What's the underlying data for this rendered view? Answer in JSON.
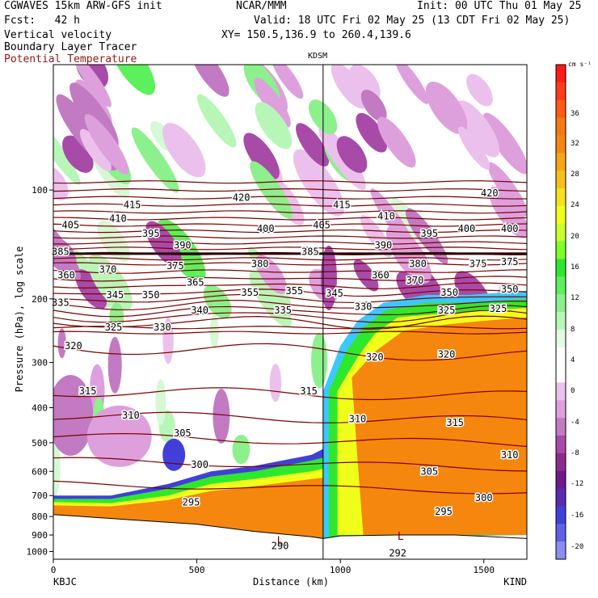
{
  "header": {
    "model": "CGWAVES 15km ARW-GFS init",
    "org": "NCAR/MMM",
    "init": "Init: 00 UTC Thu 01 May 25",
    "fcst": "Fcst:   42 h",
    "valid": "Valid: 18 UTC Fri 02 May 25 (13 CDT Fri 02 May 25)",
    "xy": "XY= 150.5,136.9 to 260.4,139.6",
    "field1": "Vertical velocity",
    "field2": "Boundary Layer Tracer",
    "field3": "Potential Temperature"
  },
  "colors": {
    "theta_line": "#7a0000",
    "title_red": "#8b1a1a",
    "ground": "#f5870e"
  },
  "chart_data": {
    "type": "heatmap",
    "title": "",
    "xlabel": "Distance (km)",
    "ylabel": "Pressure (hPa), log scale",
    "station_marker": "KDSM",
    "station_marker_x_km": 940,
    "left_endpoint": "KBJC",
    "right_endpoint": "KIND",
    "xlim": [
      0,
      1650
    ],
    "x_ticks": [
      0,
      500,
      1000,
      1500
    ],
    "y_ticks": [
      100,
      200,
      300,
      400,
      500,
      600,
      700,
      800,
      900,
      1000
    ],
    "y_scale": "log",
    "colorbar": {
      "unit": "cm s⁻¹",
      "ticks": [
        36,
        32,
        28,
        24,
        20,
        16,
        12,
        8,
        4,
        0,
        -4,
        -8,
        -12,
        -16,
        -20
      ],
      "colors": [
        "#ff1a1a",
        "#ff3a1a",
        "#ff5a14",
        "#f47a10",
        "#f5870e",
        "#f5a515",
        "#f5c01a",
        "#f5e11a",
        "#f0ff1a",
        "#c8ff2a",
        "#7dff2a",
        "#2ee82e",
        "#5cf05c",
        "#8cf08c",
        "#b8f6b8",
        "#e2fbe2",
        "#ffffff",
        "#ffffff",
        "#ecc0ec",
        "#dda0dd",
        "#c27ac2",
        "#a84aa8",
        "#8e2a8e",
        "#6e1a8c",
        "#5a2ab0",
        "#4040d8",
        "#6060ea",
        "#8c8cf2"
      ]
    },
    "theta_labels": [
      {
        "v": "415",
        "x": 275,
        "p": 110
      },
      {
        "v": "405",
        "x": 60,
        "p": 125
      },
      {
        "v": "410",
        "x": 225,
        "p": 120
      },
      {
        "v": "420",
        "x": 655,
        "p": 105
      },
      {
        "v": "395",
        "x": 340,
        "p": 132
      },
      {
        "v": "390",
        "x": 450,
        "p": 142
      },
      {
        "v": "400",
        "x": 740,
        "p": 128
      },
      {
        "v": "405",
        "x": 935,
        "p": 125
      },
      {
        "v": "385",
        "x": 25,
        "p": 148
      },
      {
        "v": "375",
        "x": 425,
        "p": 162
      },
      {
        "v": "370",
        "x": 190,
        "p": 166
      },
      {
        "v": "360",
        "x": 45,
        "p": 172
      },
      {
        "v": "365",
        "x": 495,
        "p": 180
      },
      {
        "v": "380",
        "x": 720,
        "p": 160
      },
      {
        "v": "385",
        "x": 895,
        "p": 148
      },
      {
        "v": "355",
        "x": 685,
        "p": 192
      },
      {
        "v": "355",
        "x": 840,
        "p": 190
      },
      {
        "v": "345",
        "x": 215,
        "p": 195
      },
      {
        "v": "350",
        "x": 340,
        "p": 195
      },
      {
        "v": "345",
        "x": 980,
        "p": 193
      },
      {
        "v": "335",
        "x": 25,
        "p": 205
      },
      {
        "v": "340",
        "x": 510,
        "p": 215
      },
      {
        "v": "335",
        "x": 800,
        "p": 215
      },
      {
        "v": "325",
        "x": 210,
        "p": 240
      },
      {
        "v": "330",
        "x": 380,
        "p": 240
      },
      {
        "v": "320",
        "x": 70,
        "p": 270
      },
      {
        "v": "315",
        "x": 120,
        "p": 360
      },
      {
        "v": "310",
        "x": 270,
        "p": 420
      },
      {
        "v": "305",
        "x": 450,
        "p": 470
      },
      {
        "v": "300",
        "x": 510,
        "p": 575
      },
      {
        "v": "295",
        "x": 480,
        "p": 730
      },
      {
        "v": "315",
        "x": 890,
        "p": 360
      },
      {
        "v": "290",
        "x": 790,
        "p": 965
      },
      {
        "v": "415",
        "x": 1005,
        "p": 110
      },
      {
        "v": "410",
        "x": 1160,
        "p": 118
      },
      {
        "v": "420",
        "x": 1520,
        "p": 102
      },
      {
        "v": "390",
        "x": 1150,
        "p": 142
      },
      {
        "v": "395",
        "x": 1310,
        "p": 132
      },
      {
        "v": "400",
        "x": 1440,
        "p": 128
      },
      {
        "v": "400",
        "x": 1590,
        "p": 128
      },
      {
        "v": "380",
        "x": 1270,
        "p": 160
      },
      {
        "v": "375",
        "x": 1480,
        "p": 160
      },
      {
        "v": "375",
        "x": 1590,
        "p": 158
      },
      {
        "v": "360",
        "x": 1140,
        "p": 172
      },
      {
        "v": "370",
        "x": 1260,
        "p": 178
      },
      {
        "v": "350",
        "x": 1380,
        "p": 192
      },
      {
        "v": "350",
        "x": 1590,
        "p": 188
      },
      {
        "v": "330",
        "x": 1080,
        "p": 210
      },
      {
        "v": "325",
        "x": 1370,
        "p": 215
      },
      {
        "v": "325",
        "x": 1550,
        "p": 213
      },
      {
        "v": "320",
        "x": 1120,
        "p": 290
      },
      {
        "v": "320",
        "x": 1370,
        "p": 285
      },
      {
        "v": "310",
        "x": 1060,
        "p": 430
      },
      {
        "v": "315",
        "x": 1400,
        "p": 440
      },
      {
        "v": "310",
        "x": 1590,
        "p": 540
      },
      {
        "v": "305",
        "x": 1310,
        "p": 600
      },
      {
        "v": "300",
        "x": 1500,
        "p": 710
      },
      {
        "v": "295",
        "x": 1360,
        "p": 775
      },
      {
        "v": "292",
        "x": 1200,
        "p": 1010
      }
    ],
    "low_markers": [
      {
        "v": "L",
        "x": 790,
        "p": 935
      },
      {
        "v": "L",
        "x": 1210,
        "p": 910
      }
    ],
    "ground_profile_p": [
      [
        0,
        790
      ],
      [
        100,
        800
      ],
      [
        300,
        820
      ],
      [
        500,
        840
      ],
      [
        700,
        880
      ],
      [
        900,
        910
      ],
      [
        940,
        920
      ],
      [
        1000,
        905
      ],
      [
        1200,
        900
      ],
      [
        1400,
        900
      ],
      [
        1650,
        920
      ]
    ]
  }
}
